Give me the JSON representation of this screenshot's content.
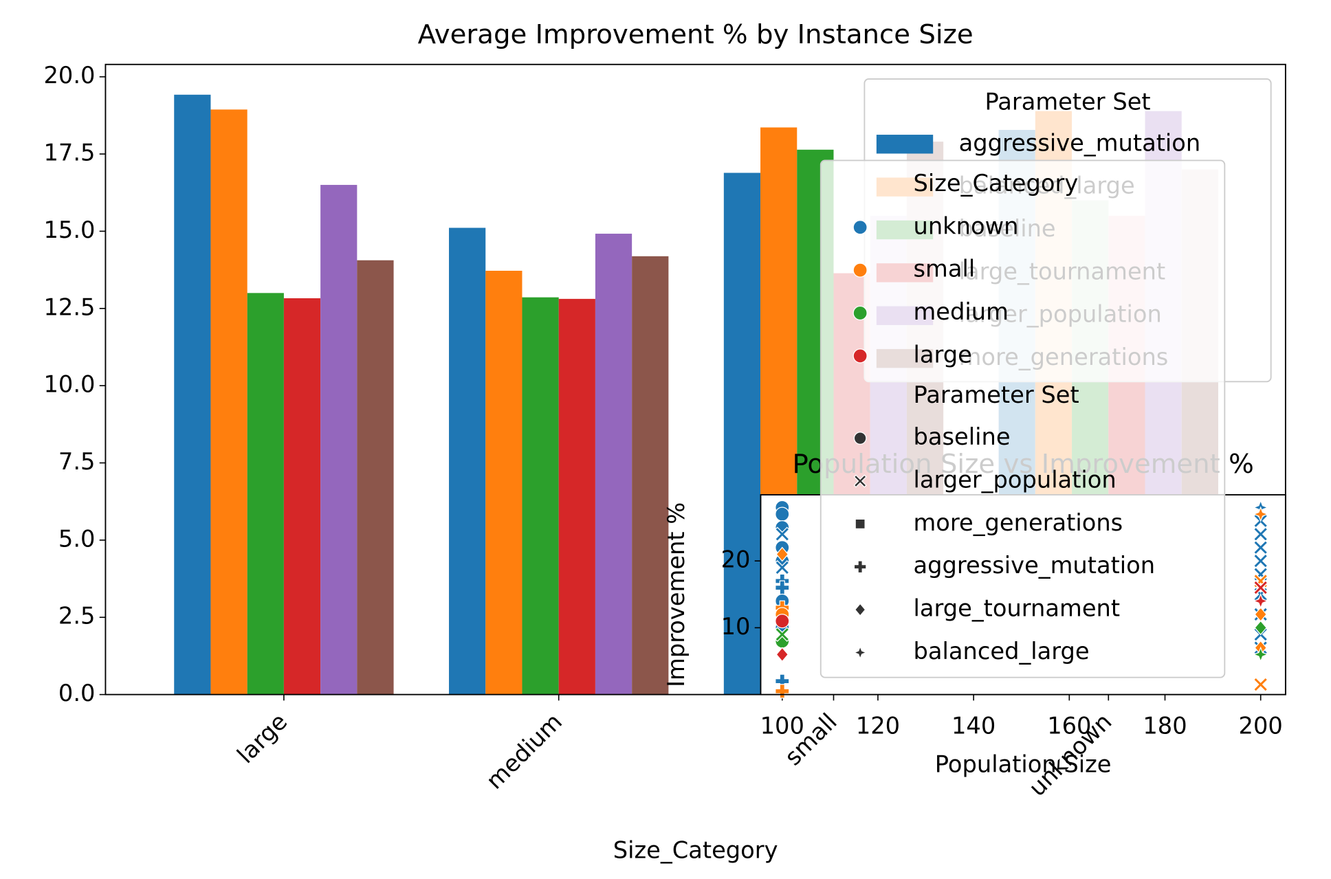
{
  "chart_data": [
    {
      "type": "bar",
      "title": "Average Improvement % by Instance Size",
      "xlabel": "Size_Category",
      "categories": [
        "large",
        "medium",
        "small",
        "unknown"
      ],
      "series": [
        {
          "name": "aggressive_mutation",
          "color": "#1f77b4",
          "values": [
            19.42,
            15.11,
            16.89,
            18.28
          ]
        },
        {
          "name": "balanced_large",
          "color": "#ff7f0e",
          "values": [
            18.94,
            13.72,
            18.36,
            18.89
          ]
        },
        {
          "name": "baseline",
          "color": "#2ca02c",
          "values": [
            13.0,
            12.86,
            17.64,
            16.0
          ]
        },
        {
          "name": "large_tournament",
          "color": "#d62728",
          "values": [
            12.83,
            12.81,
            13.64,
            15.5
          ]
        },
        {
          "name": "larger_population",
          "color": "#9467bd",
          "values": [
            16.5,
            14.92,
            15.5,
            18.89
          ]
        },
        {
          "name": "more_generations",
          "color": "#8c564b",
          "values": [
            14.06,
            14.19,
            17.9,
            17.0
          ]
        }
      ],
      "ylim": [
        0,
        20.4
      ],
      "yticks": [
        {
          "value": 0,
          "label": "0.0"
        },
        2.5,
        {
          "value": 5,
          "label": "5.0"
        },
        7.5,
        {
          "value": 10,
          "label": "10.0"
        },
        12.5,
        {
          "value": 15,
          "label": "15.0"
        },
        17.5,
        {
          "value": 20,
          "label": "20.0"
        }
      ],
      "legend_title": "Parameter Set",
      "legend": "upper right"
    },
    {
      "type": "scatter",
      "title": "Population Size vs Improvement %",
      "xlabel": "Population Size",
      "ylabel": "Improvement %",
      "xlim": [
        95.5,
        205.2
      ],
      "xticks": [
        100,
        120,
        140,
        160,
        180,
        200
      ],
      "ylim": [
        0,
        29.9
      ],
      "yticks": [
        10,
        20
      ],
      "hue_title": "Size_Category",
      "style_title": "Parameter Set",
      "style_names": [
        "baseline",
        "larger_population",
        "more_generations",
        "aggressive_mutation",
        "large_tournament",
        "balanced_large"
      ],
      "style_markers": [
        "o",
        "x",
        "s",
        "P",
        "D",
        "*"
      ],
      "series": [
        {
          "name": "unknown",
          "color": "#1f77b4",
          "x": [
            100,
            100,
            100,
            100,
            100,
            100,
            100,
            100,
            100,
            100,
            100,
            100,
            100,
            200,
            200,
            200,
            200,
            200,
            200,
            200,
            200,
            200,
            200
          ],
          "values": [
            28,
            27,
            25,
            24,
            22,
            20,
            19,
            17,
            16,
            14,
            12,
            10,
            2,
            28,
            26,
            24,
            22,
            20,
            18,
            15,
            12,
            9,
            7
          ],
          "styles": [
            "baseline",
            "baseline",
            "baseline",
            "larger_population",
            "baseline",
            "baseline",
            "larger_population",
            "aggressive_mutation",
            "aggressive_mutation",
            "baseline",
            "baseline",
            "baseline",
            "aggressive_mutation",
            "balanced_large",
            "larger_population",
            "larger_population",
            "larger_population",
            "larger_population",
            "larger_population",
            "larger_population",
            "larger_population",
            "larger_population",
            "larger_population"
          ]
        },
        {
          "name": "small",
          "color": "#ff7f0e",
          "x": [
            100,
            100,
            100,
            100,
            200,
            200,
            200,
            200,
            200
          ],
          "values": [
            21,
            13,
            12,
            0.5,
            27,
            17,
            12,
            1.5,
            7
          ],
          "styles": [
            "large_tournament",
            "aggressive_mutation",
            "baseline",
            "aggressive_mutation",
            "balanced_large",
            "larger_population",
            "large_tournament",
            "larger_population",
            "large_tournament"
          ]
        },
        {
          "name": "medium",
          "color": "#2ca02c",
          "x": [
            100,
            100,
            200,
            200
          ],
          "values": [
            8,
            9,
            6,
            10
          ],
          "styles": [
            "baseline",
            "larger_population",
            "balanced_large",
            "large_tournament"
          ]
        },
        {
          "name": "large",
          "color": "#d62728",
          "x": [
            100,
            100,
            200,
            200
          ],
          "values": [
            6,
            11,
            14,
            16
          ],
          "styles": [
            "large_tournament",
            "baseline",
            "balanced_large",
            "larger_population"
          ]
        }
      ]
    }
  ]
}
